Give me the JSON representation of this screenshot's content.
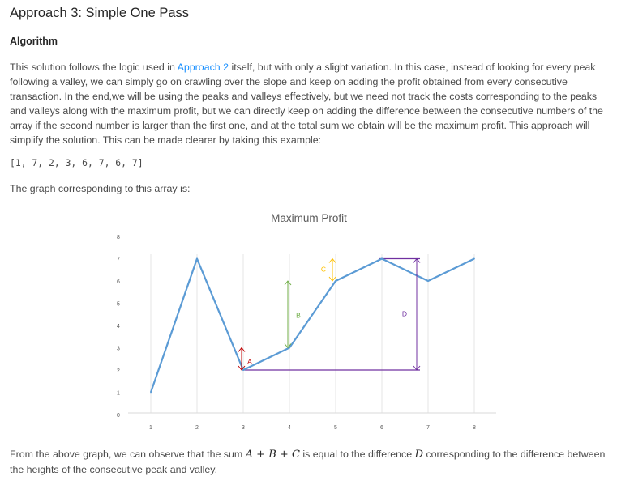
{
  "article": {
    "title": "Approach 3: Simple One Pass",
    "section_heading": "Algorithm",
    "intro_before_link": "This solution follows the logic used in ",
    "intro_link": "Approach 2",
    "intro_after_link": " itself, but with only a slight variation. In this case, instead of looking for every peak following a valley, we can simply go on crawling over the slope and keep on adding the profit obtained from every consecutive transaction. In the end,we will be using the peaks and valleys effectively, but we need not track the costs corresponding to the peaks and valleys along with the maximum profit, but we can directly keep on adding the difference between the consecutive numbers of the array if the second number is larger than the first one, and at the total sum we obtain will be the maximum profit. This approach will simplify the solution. This can be made clearer by taking this example:",
    "example_array": "[1, 7, 2, 3, 6, 7, 6, 7]",
    "graph_intro": "The graph corresponding to this array is:",
    "conclusion_part1": "From the above graph, we can observe that the sum ",
    "math_a": "A",
    "math_plus1": " + ",
    "math_b": "B",
    "math_plus2": " + ",
    "math_c": "C",
    "conclusion_part2": " is equal to the difference ",
    "math_d": "D",
    "conclusion_part3": " corresponding to the difference between the heights of the consecutive peak and valley."
  },
  "chart_data": {
    "type": "line",
    "title": "Maximum Profit",
    "xlabel": "",
    "ylabel": "",
    "x": [
      1,
      2,
      3,
      4,
      5,
      6,
      7,
      8
    ],
    "xlim": [
      0.5,
      8.5
    ],
    "ylim": [
      0,
      8
    ],
    "yticks": [
      0,
      1,
      2,
      3,
      4,
      5,
      6,
      7,
      8
    ],
    "xticks": [
      1,
      2,
      3,
      4,
      5,
      6,
      7,
      8
    ],
    "grid": "vertical",
    "series": [
      {
        "values": [
          1,
          7,
          2,
          3,
          6,
          7,
          6,
          7
        ],
        "color": "#5b9bd5"
      }
    ],
    "annotations": [
      {
        "label": "A",
        "x": 3,
        "y_from": 2,
        "y_to": 3,
        "color": "#c00000"
      },
      {
        "label": "B",
        "x": 4,
        "y_from": 3,
        "y_to": 6,
        "color": "#70ad47"
      },
      {
        "label": "C",
        "x": 5,
        "y_from": 6,
        "y_to": 7,
        "color": "#ffc000"
      },
      {
        "label": "D",
        "x": 7,
        "y_from": 2,
        "y_to": 7,
        "color": "#7030a0"
      }
    ],
    "colors": {
      "grid": "#e6e6e6",
      "tick_label": "#595959",
      "title": "#595959",
      "d_lines": "#7030a0"
    }
  }
}
